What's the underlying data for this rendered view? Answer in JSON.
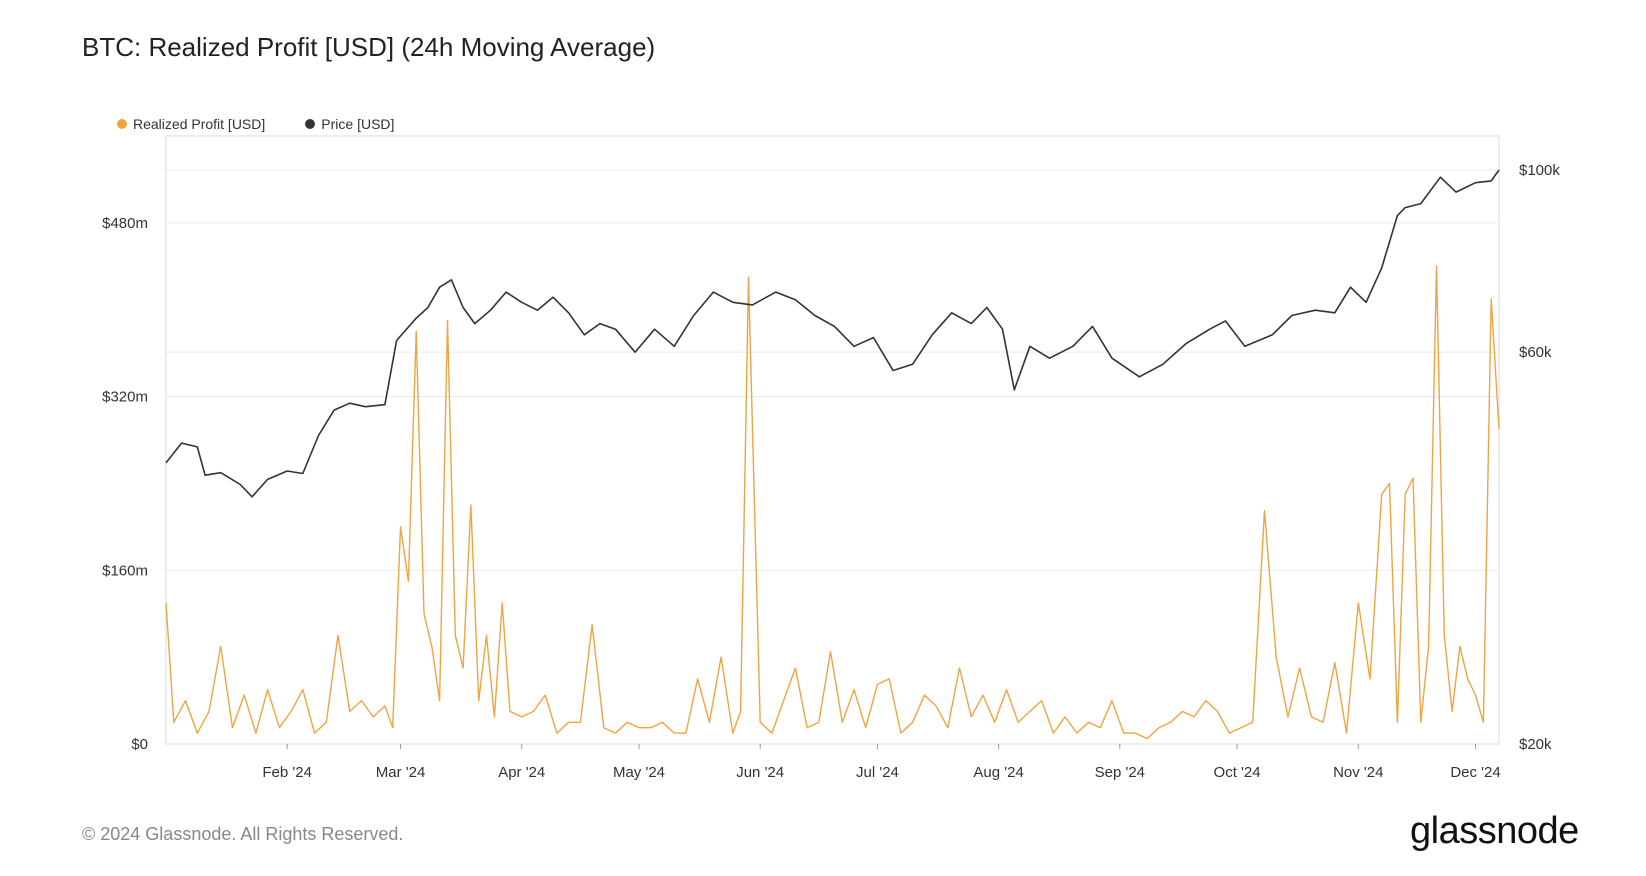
{
  "title": "BTC: Realized Profit [USD] (24h Moving Average)",
  "footer": "© 2024 Glassnode. All Rights Reserved.",
  "brand": "glassnode",
  "colors": {
    "profit": "#f0a441",
    "price": "#333333",
    "grid": "#ececec"
  },
  "chart_data": {
    "type": "line",
    "title": "BTC: Realized Profit [USD] (24h Moving Average)",
    "legend_placement": "top-left",
    "grid": true,
    "x_tick_labels": [
      "Feb '24",
      "Mar '24",
      "Apr '24",
      "May '24",
      "Jun '24",
      "Jul '24",
      "Aug '24",
      "Sep '24",
      "Oct '24",
      "Nov '24",
      "Dec '24"
    ],
    "x_range": [
      "2024-01-01",
      "2024-12-07"
    ],
    "y_left": {
      "label": "",
      "ticks": [
        "$0",
        "$160m",
        "$320m",
        "$480m"
      ],
      "range": [
        0,
        560
      ],
      "unit": "USD millions"
    },
    "y_right": {
      "label": "",
      "ticks": [
        "$20k",
        "$60k",
        "$100k"
      ],
      "range": [
        20000,
        110000
      ],
      "scale": "log",
      "unit": "USD"
    },
    "series": [
      {
        "name": "Realized Profit [USD]",
        "axis": "left",
        "dates": [
          "2024-01-01",
          "2024-01-03",
          "2024-01-06",
          "2024-01-09",
          "2024-01-12",
          "2024-01-15",
          "2024-01-18",
          "2024-01-21",
          "2024-01-24",
          "2024-01-27",
          "2024-01-30",
          "2024-02-02",
          "2024-02-05",
          "2024-02-08",
          "2024-02-11",
          "2024-02-14",
          "2024-02-17",
          "2024-02-20",
          "2024-02-23",
          "2024-02-26",
          "2024-02-28",
          "2024-03-01",
          "2024-03-03",
          "2024-03-05",
          "2024-03-07",
          "2024-03-09",
          "2024-03-11",
          "2024-03-13",
          "2024-03-15",
          "2024-03-17",
          "2024-03-19",
          "2024-03-21",
          "2024-03-23",
          "2024-03-25",
          "2024-03-27",
          "2024-03-29",
          "2024-04-01",
          "2024-04-04",
          "2024-04-07",
          "2024-04-10",
          "2024-04-13",
          "2024-04-16",
          "2024-04-19",
          "2024-04-22",
          "2024-04-25",
          "2024-04-28",
          "2024-05-01",
          "2024-05-04",
          "2024-05-07",
          "2024-05-10",
          "2024-05-13",
          "2024-05-16",
          "2024-05-19",
          "2024-05-22",
          "2024-05-25",
          "2024-05-27",
          "2024-05-29",
          "2024-06-01",
          "2024-06-04",
          "2024-06-07",
          "2024-06-10",
          "2024-06-13",
          "2024-06-16",
          "2024-06-19",
          "2024-06-22",
          "2024-06-25",
          "2024-06-28",
          "2024-07-01",
          "2024-07-04",
          "2024-07-07",
          "2024-07-10",
          "2024-07-13",
          "2024-07-16",
          "2024-07-19",
          "2024-07-22",
          "2024-07-25",
          "2024-07-28",
          "2024-07-31",
          "2024-08-03",
          "2024-08-06",
          "2024-08-09",
          "2024-08-12",
          "2024-08-15",
          "2024-08-18",
          "2024-08-21",
          "2024-08-24",
          "2024-08-27",
          "2024-08-30",
          "2024-09-02",
          "2024-09-05",
          "2024-09-08",
          "2024-09-11",
          "2024-09-14",
          "2024-09-17",
          "2024-09-20",
          "2024-09-23",
          "2024-09-26",
          "2024-09-29",
          "2024-10-02",
          "2024-10-05",
          "2024-10-08",
          "2024-10-11",
          "2024-10-14",
          "2024-10-17",
          "2024-10-20",
          "2024-10-23",
          "2024-10-26",
          "2024-10-29",
          "2024-11-01",
          "2024-11-04",
          "2024-11-07",
          "2024-11-09",
          "2024-11-11",
          "2024-11-13",
          "2024-11-15",
          "2024-11-17",
          "2024-11-19",
          "2024-11-21",
          "2024-11-23",
          "2024-11-25",
          "2024-11-27",
          "2024-11-29",
          "2024-12-01",
          "2024-12-03",
          "2024-12-05",
          "2024-12-07"
        ],
        "values": [
          130,
          20,
          40,
          10,
          30,
          90,
          15,
          45,
          10,
          50,
          15,
          30,
          50,
          10,
          20,
          100,
          30,
          40,
          25,
          35,
          15,
          200,
          150,
          380,
          120,
          90,
          40,
          390,
          100,
          70,
          220,
          40,
          100,
          25,
          130,
          30,
          25,
          30,
          45,
          10,
          20,
          20,
          110,
          15,
          10,
          20,
          15,
          15,
          20,
          10,
          10,
          60,
          20,
          80,
          10,
          30,
          430,
          20,
          10,
          40,
          70,
          15,
          20,
          85,
          20,
          50,
          15,
          55,
          60,
          10,
          20,
          45,
          35,
          15,
          70,
          25,
          45,
          20,
          50,
          20,
          30,
          40,
          10,
          25,
          10,
          20,
          15,
          40,
          10,
          10,
          5,
          15,
          20,
          30,
          25,
          40,
          30,
          10,
          15,
          20,
          215,
          80,
          25,
          70,
          25,
          20,
          75,
          10,
          130,
          60,
          230,
          240,
          20,
          230,
          245,
          20,
          90,
          440,
          100,
          30,
          90,
          60,
          45,
          20,
          410,
          290
        ]
      },
      {
        "name": "Price [USD]",
        "axis": "right",
        "dates": [
          "2024-01-01",
          "2024-01-05",
          "2024-01-09",
          "2024-01-11",
          "2024-01-15",
          "2024-01-20",
          "2024-01-23",
          "2024-01-27",
          "2024-02-01",
          "2024-02-05",
          "2024-02-09",
          "2024-02-13",
          "2024-02-17",
          "2024-02-21",
          "2024-02-26",
          "2024-02-29",
          "2024-03-05",
          "2024-03-08",
          "2024-03-11",
          "2024-03-14",
          "2024-03-17",
          "2024-03-20",
          "2024-03-24",
          "2024-03-28",
          "2024-04-01",
          "2024-04-05",
          "2024-04-09",
          "2024-04-13",
          "2024-04-17",
          "2024-04-21",
          "2024-04-25",
          "2024-04-30",
          "2024-05-05",
          "2024-05-10",
          "2024-05-15",
          "2024-05-20",
          "2024-05-25",
          "2024-05-30",
          "2024-06-05",
          "2024-06-10",
          "2024-06-15",
          "2024-06-20",
          "2024-06-25",
          "2024-06-30",
          "2024-07-05",
          "2024-07-10",
          "2024-07-15",
          "2024-07-20",
          "2024-07-25",
          "2024-07-29",
          "2024-08-02",
          "2024-08-05",
          "2024-08-09",
          "2024-08-14",
          "2024-08-20",
          "2024-08-25",
          "2024-08-30",
          "2024-09-06",
          "2024-09-12",
          "2024-09-18",
          "2024-09-24",
          "2024-09-28",
          "2024-10-03",
          "2024-10-10",
          "2024-10-15",
          "2024-10-21",
          "2024-10-26",
          "2024-10-30",
          "2024-11-03",
          "2024-11-07",
          "2024-11-11",
          "2024-11-13",
          "2024-11-17",
          "2024-11-22",
          "2024-11-26",
          "2024-12-01",
          "2024-12-05",
          "2024-12-07"
        ],
        "values": [
          44000,
          46500,
          46000,
          42500,
          42800,
          41400,
          40000,
          42000,
          43000,
          42700,
          47500,
          51000,
          52000,
          51500,
          51800,
          62000,
          66000,
          68000,
          72000,
          73500,
          68000,
          65000,
          67500,
          71000,
          69000,
          67500,
          70000,
          67000,
          63000,
          65000,
          64000,
          60000,
          64000,
          61000,
          66500,
          71000,
          69000,
          68500,
          71000,
          69500,
          66500,
          64500,
          61000,
          62500,
          57000,
          58000,
          63000,
          67000,
          65000,
          68000,
          64000,
          54000,
          61000,
          59000,
          61000,
          64500,
          59000,
          56000,
          58000,
          61500,
          64000,
          65500,
          61000,
          63000,
          66500,
          67500,
          67000,
          72000,
          69000,
          76000,
          88000,
          90000,
          91000,
          98000,
          94000,
          96500,
          97000,
          100000
        ]
      }
    ]
  }
}
